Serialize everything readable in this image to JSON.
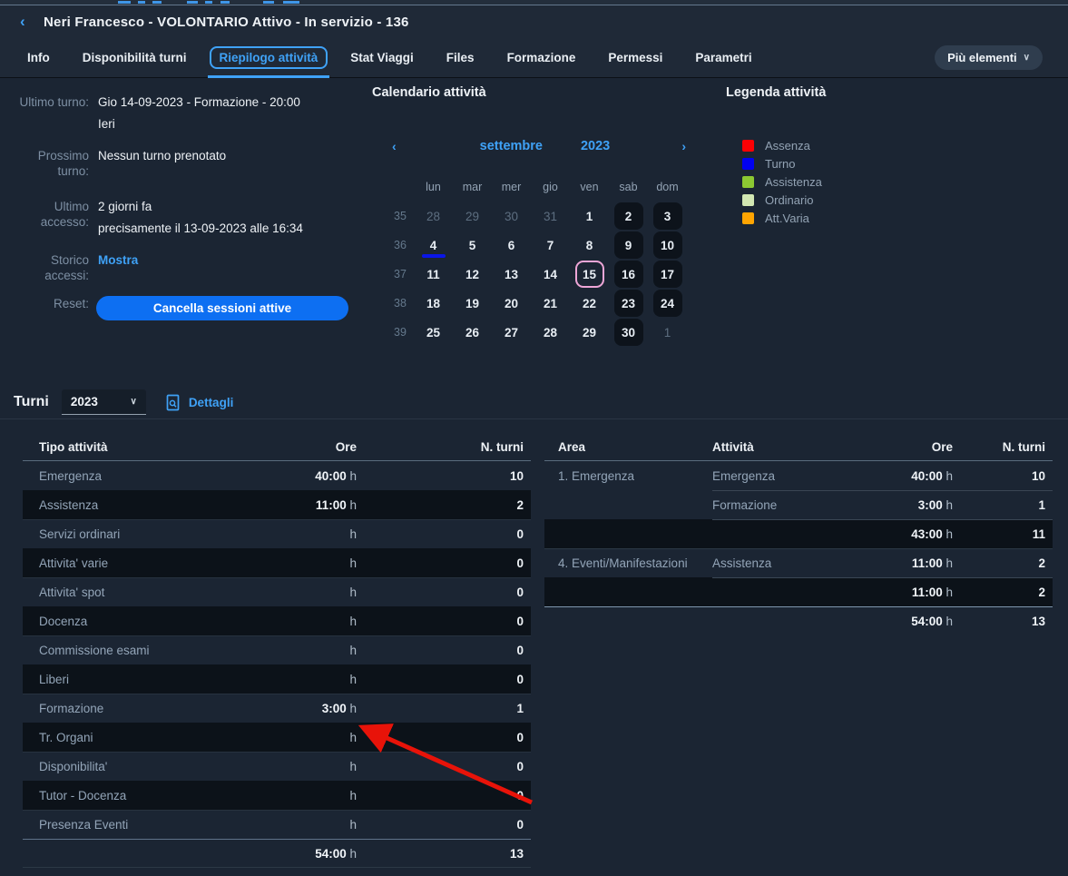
{
  "header": {
    "back_icon": "‹",
    "title": "Neri Francesco - VOLONTARIO Attivo - In servizio - 136"
  },
  "tabs": {
    "items": [
      {
        "label": "Info",
        "active": false
      },
      {
        "label": "Disponibilità turni",
        "active": false
      },
      {
        "label": "Riepilogo attività",
        "active": true
      },
      {
        "label": "Stat Viaggi",
        "active": false
      },
      {
        "label": "Files",
        "active": false
      },
      {
        "label": "Formazione",
        "active": false
      },
      {
        "label": "Permessi",
        "active": false
      },
      {
        "label": "Parametri",
        "active": false
      }
    ],
    "more_label": "Più elementi",
    "more_chevron": "∨"
  },
  "info_panel": {
    "rows": [
      {
        "label": "Ultimo turno:",
        "value": "Gio 14-09-2023 - Formazione - 20:00",
        "value2": "Ieri"
      },
      {
        "label": "Prossimo turno:",
        "value": "Nessun turno prenotato",
        "value2": ""
      },
      {
        "label": "Ultimo accesso:",
        "value": "2 giorni fa",
        "value2": "precisamente il 13-09-2023 alle 16:34"
      }
    ],
    "storico_label": "Storico accessi:",
    "storico_link": "Mostra",
    "reset_label": "Reset:",
    "reset_button": "Cancella sessioni attive"
  },
  "calendar": {
    "title": "Calendario attività",
    "prev_icon": "‹",
    "next_icon": "›",
    "month": "settembre",
    "year": "2023",
    "day_headers": [
      "lun",
      "mar",
      "mer",
      "gio",
      "ven",
      "sab",
      "dom"
    ],
    "weeks": [
      {
        "num": "35",
        "days": [
          {
            "d": "28",
            "muted": true
          },
          {
            "d": "29",
            "muted": true
          },
          {
            "d": "30",
            "muted": true
          },
          {
            "d": "31",
            "muted": true
          },
          {
            "d": "1"
          },
          {
            "d": "2",
            "weekend": true
          },
          {
            "d": "3",
            "weekend": true
          }
        ]
      },
      {
        "num": "36",
        "days": [
          {
            "d": "4",
            "marker": "turno"
          },
          {
            "d": "5"
          },
          {
            "d": "6"
          },
          {
            "d": "7"
          },
          {
            "d": "8"
          },
          {
            "d": "9",
            "weekend": true
          },
          {
            "d": "10",
            "weekend": true
          }
        ]
      },
      {
        "num": "37",
        "days": [
          {
            "d": "11"
          },
          {
            "d": "12"
          },
          {
            "d": "13"
          },
          {
            "d": "14"
          },
          {
            "d": "15",
            "today": true
          },
          {
            "d": "16",
            "weekend": true
          },
          {
            "d": "17",
            "weekend": true
          }
        ]
      },
      {
        "num": "38",
        "days": [
          {
            "d": "18"
          },
          {
            "d": "19"
          },
          {
            "d": "20"
          },
          {
            "d": "21"
          },
          {
            "d": "22"
          },
          {
            "d": "23",
            "weekend": true
          },
          {
            "d": "24",
            "weekend": true
          }
        ]
      },
      {
        "num": "39",
        "days": [
          {
            "d": "25"
          },
          {
            "d": "26"
          },
          {
            "d": "27"
          },
          {
            "d": "28"
          },
          {
            "d": "29"
          },
          {
            "d": "30",
            "weekend": true
          },
          {
            "d": "1",
            "muted": true
          }
        ]
      }
    ],
    "marker_color": "#0a16e8",
    "today_outline_color": "#eea6d7"
  },
  "legend": {
    "title": "Legenda attività",
    "items": [
      {
        "label": "Assenza",
        "color": "#fb0104"
      },
      {
        "label": "Turno",
        "color": "#0101f1"
      },
      {
        "label": "Assistenza",
        "color": "#8cc832"
      },
      {
        "label": "Ordinario",
        "color": "#d2e7b2"
      },
      {
        "label": "Att.Varia",
        "color": "#ffa502"
      }
    ]
  },
  "turni": {
    "title": "Turni",
    "year_value": "2023",
    "select_chevron": "∨",
    "details_label": "Dettagli"
  },
  "left_table": {
    "headers": [
      "Tipo attività",
      "Ore",
      "N. turni"
    ],
    "hours_unit": "h",
    "rows": [
      {
        "label": "Emergenza",
        "ore": "40:00",
        "n": "10"
      },
      {
        "label": "Assistenza",
        "ore": "11:00",
        "n": "2"
      },
      {
        "label": "Servizi ordinari",
        "ore": "",
        "n": "0"
      },
      {
        "label": "Attivita' varie",
        "ore": "",
        "n": "0"
      },
      {
        "label": "Attivita' spot",
        "ore": "",
        "n": "0"
      },
      {
        "label": "Docenza",
        "ore": "",
        "n": "0"
      },
      {
        "label": "Commissione esami",
        "ore": "",
        "n": "0"
      },
      {
        "label": "Liberi",
        "ore": "",
        "n": "0"
      },
      {
        "label": "Formazione",
        "ore": "3:00",
        "n": "1"
      },
      {
        "label": "Tr. Organi",
        "ore": "",
        "n": "0"
      },
      {
        "label": "Disponibilita'",
        "ore": "",
        "n": "0"
      },
      {
        "label": "Tutor - Docenza",
        "ore": "",
        "n": "0"
      },
      {
        "label": "Presenza Eventi",
        "ore": "",
        "n": "0"
      }
    ],
    "total": {
      "ore": "54:00",
      "n": "13"
    }
  },
  "right_table": {
    "headers": [
      "Area",
      "Attività",
      "Ore",
      "N. turni"
    ],
    "hours_unit": "h",
    "groups": [
      {
        "area": "1. Emergenza",
        "rows": [
          {
            "att": "Emergenza",
            "ore": "40:00",
            "n": "10"
          },
          {
            "att": "Formazione",
            "ore": "3:00",
            "n": "1"
          }
        ],
        "subtotal": {
          "ore": "43:00",
          "n": "11"
        }
      },
      {
        "area": "4. Eventi/Manifestazioni",
        "rows": [
          {
            "att": "Assistenza",
            "ore": "11:00",
            "n": "2"
          }
        ],
        "subtotal": {
          "ore": "11:00",
          "n": "2"
        }
      }
    ],
    "total": {
      "ore": "54:00",
      "n": "13"
    }
  },
  "annotation": {
    "arrow_color": "#e81309",
    "tip": [
      399,
      799
    ],
    "tail": [
      586,
      884
    ]
  },
  "colors": {
    "background": "#1b2533",
    "bar_background": "#1f2937",
    "stripe_dark": "#0c1219",
    "accent_blue": "#3fa2f7",
    "button_blue": "#0d6ff2",
    "muted_text": "#93a5b8"
  }
}
